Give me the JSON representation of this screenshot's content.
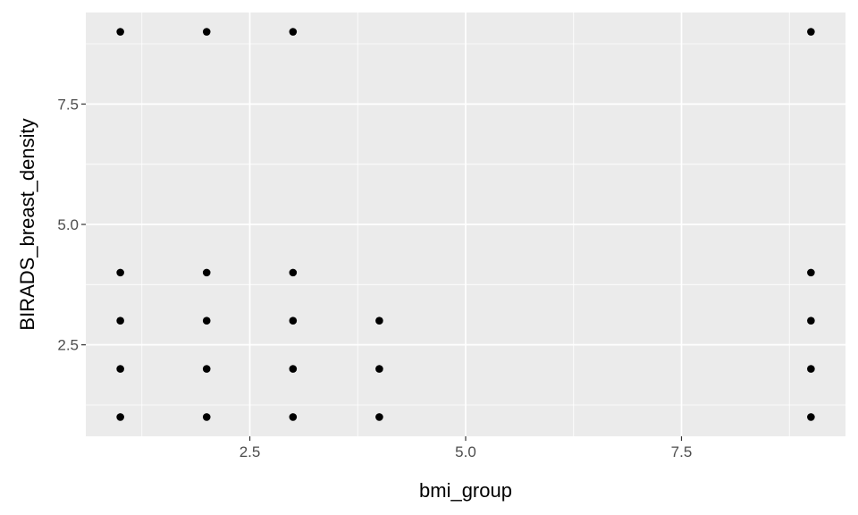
{
  "chart_data": {
    "type": "scatter",
    "xlabel": "bmi_group",
    "ylabel": "BIRADS_breast_density",
    "xlim": [
      0.6,
      9.4
    ],
    "ylim": [
      0.6,
      9.4
    ],
    "x_ticks": [
      2.5,
      5.0,
      7.5
    ],
    "x_tick_labels": [
      "2.5",
      "5.0",
      "7.5"
    ],
    "y_ticks": [
      2.5,
      5.0,
      7.5
    ],
    "y_tick_labels": [
      "2.5",
      "5.0",
      "7.5"
    ],
    "grid": true,
    "legend": "none",
    "colors": {
      "panel": "#ebebeb",
      "grid": "#ffffff",
      "point": "#000000",
      "tick": "#333333"
    },
    "points": [
      {
        "x": 1,
        "y": 1
      },
      {
        "x": 1,
        "y": 2
      },
      {
        "x": 1,
        "y": 3
      },
      {
        "x": 1,
        "y": 4
      },
      {
        "x": 1,
        "y": 9
      },
      {
        "x": 2,
        "y": 1
      },
      {
        "x": 2,
        "y": 2
      },
      {
        "x": 2,
        "y": 3
      },
      {
        "x": 2,
        "y": 4
      },
      {
        "x": 2,
        "y": 9
      },
      {
        "x": 3,
        "y": 1
      },
      {
        "x": 3,
        "y": 2
      },
      {
        "x": 3,
        "y": 3
      },
      {
        "x": 3,
        "y": 4
      },
      {
        "x": 3,
        "y": 9
      },
      {
        "x": 4,
        "y": 1
      },
      {
        "x": 4,
        "y": 2
      },
      {
        "x": 4,
        "y": 3
      },
      {
        "x": 9,
        "y": 1
      },
      {
        "x": 9,
        "y": 2
      },
      {
        "x": 9,
        "y": 3
      },
      {
        "x": 9,
        "y": 4
      },
      {
        "x": 9,
        "y": 9
      }
    ]
  }
}
